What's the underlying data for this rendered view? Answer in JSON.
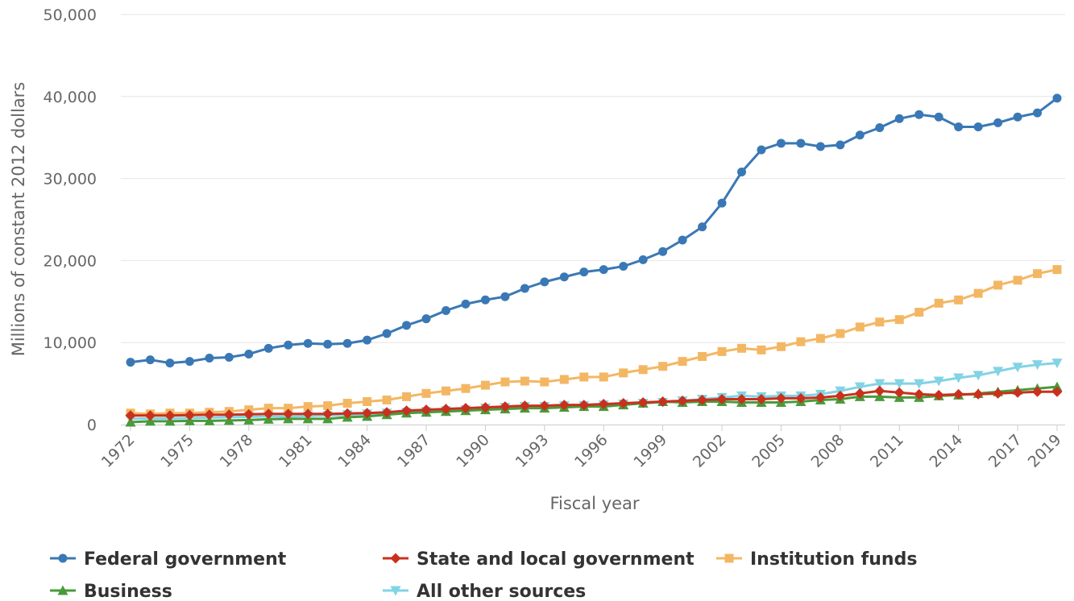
{
  "chart_data": {
    "type": "line",
    "xlabel": "Fiscal year",
    "ylabel": "Millions of constant 2012 dollars",
    "ylim": [
      0,
      50000
    ],
    "yticks": [
      0,
      10000,
      20000,
      30000,
      40000,
      50000
    ],
    "ytick_labels": [
      "0",
      "10,000",
      "20,000",
      "30,000",
      "40,000",
      "50,000"
    ],
    "xtick_labels": [
      "1972",
      "1975",
      "1978",
      "1981",
      "1984",
      "1987",
      "1990",
      "1993",
      "1996",
      "1999",
      "2002",
      "2005",
      "2008",
      "2011",
      "2014",
      "2017",
      "2019"
    ],
    "grid": "horizontal",
    "legend_position": "bottom",
    "x": [
      1972,
      1973,
      1974,
      1975,
      1976,
      1977,
      1978,
      1979,
      1980,
      1981,
      1982,
      1983,
      1984,
      1985,
      1986,
      1987,
      1988,
      1989,
      1990,
      1991,
      1992,
      1993,
      1994,
      1995,
      1996,
      1997,
      1998,
      1999,
      2000,
      2001,
      2002,
      2003,
      2004,
      2005,
      2006,
      2007,
      2008,
      2009,
      2010,
      2011,
      2012,
      2013,
      2014,
      2015,
      2016,
      2017,
      2018,
      2019
    ],
    "series": [
      {
        "name": "Federal government",
        "color": "#3a78b5",
        "marker": "circle",
        "values": [
          7600,
          7900,
          7500,
          7700,
          8100,
          8200,
          8600,
          9300,
          9700,
          9900,
          9800,
          9900,
          10300,
          11100,
          12100,
          12900,
          13900,
          14700,
          15200,
          15600,
          16600,
          17400,
          18000,
          18600,
          18900,
          19300,
          20100,
          21100,
          22500,
          24100,
          27000,
          30800,
          33500,
          34300,
          34300,
          33900,
          34100,
          35300,
          36200,
          37300,
          37800,
          37500,
          36300,
          36300,
          36800,
          37500,
          38000,
          39800
        ]
      },
      {
        "name": "State and local government",
        "color": "#c9301d",
        "marker": "diamond",
        "values": [
          1100,
          1100,
          1100,
          1150,
          1200,
          1200,
          1250,
          1300,
          1300,
          1300,
          1300,
          1350,
          1400,
          1500,
          1700,
          1800,
          1900,
          2000,
          2100,
          2200,
          2300,
          2300,
          2400,
          2400,
          2500,
          2600,
          2700,
          2800,
          2900,
          3000,
          3100,
          3100,
          3100,
          3200,
          3200,
          3300,
          3500,
          3800,
          4100,
          3900,
          3700,
          3600,
          3700,
          3700,
          3800,
          3900,
          4000,
          4000
        ]
      },
      {
        "name": "Institution funds",
        "color": "#f3b764",
        "marker": "square",
        "values": [
          1400,
          1300,
          1400,
          1400,
          1500,
          1600,
          1800,
          2000,
          2000,
          2200,
          2300,
          2600,
          2800,
          3000,
          3400,
          3800,
          4100,
          4400,
          4800,
          5200,
          5300,
          5200,
          5500,
          5800,
          5800,
          6300,
          6700,
          7100,
          7700,
          8300,
          8900,
          9300,
          9100,
          9500,
          10100,
          10500,
          11100,
          11900,
          12500,
          12800,
          13700,
          14800,
          15200,
          16000,
          17000,
          17600,
          18400,
          18900
        ]
      },
      {
        "name": "Business",
        "color": "#4a9a3b",
        "marker": "triangle",
        "values": [
          300,
          400,
          400,
          450,
          450,
          500,
          550,
          650,
          700,
          700,
          700,
          900,
          1000,
          1200,
          1400,
          1500,
          1600,
          1700,
          1800,
          1900,
          2000,
          2000,
          2100,
          2200,
          2200,
          2400,
          2600,
          2800,
          2700,
          2800,
          2800,
          2700,
          2700,
          2700,
          2800,
          3000,
          3100,
          3400,
          3400,
          3300,
          3300,
          3500,
          3600,
          3800,
          4000,
          4200,
          4400,
          4600
        ]
      },
      {
        "name": "All other sources",
        "color": "#82d3e4",
        "marker": "triangle-down",
        "values": [
          700,
          750,
          750,
          800,
          850,
          900,
          950,
          1000,
          1000,
          1050,
          1100,
          1200,
          1300,
          1400,
          1500,
          1600,
          1700,
          1800,
          2000,
          2100,
          2200,
          2200,
          2300,
          2300,
          2400,
          2500,
          2600,
          2700,
          2900,
          3100,
          3300,
          3500,
          3400,
          3500,
          3500,
          3700,
          4100,
          4600,
          5000,
          5000,
          5000,
          5300,
          5700,
          6000,
          6500,
          7000,
          7300,
          7500
        ]
      }
    ]
  }
}
